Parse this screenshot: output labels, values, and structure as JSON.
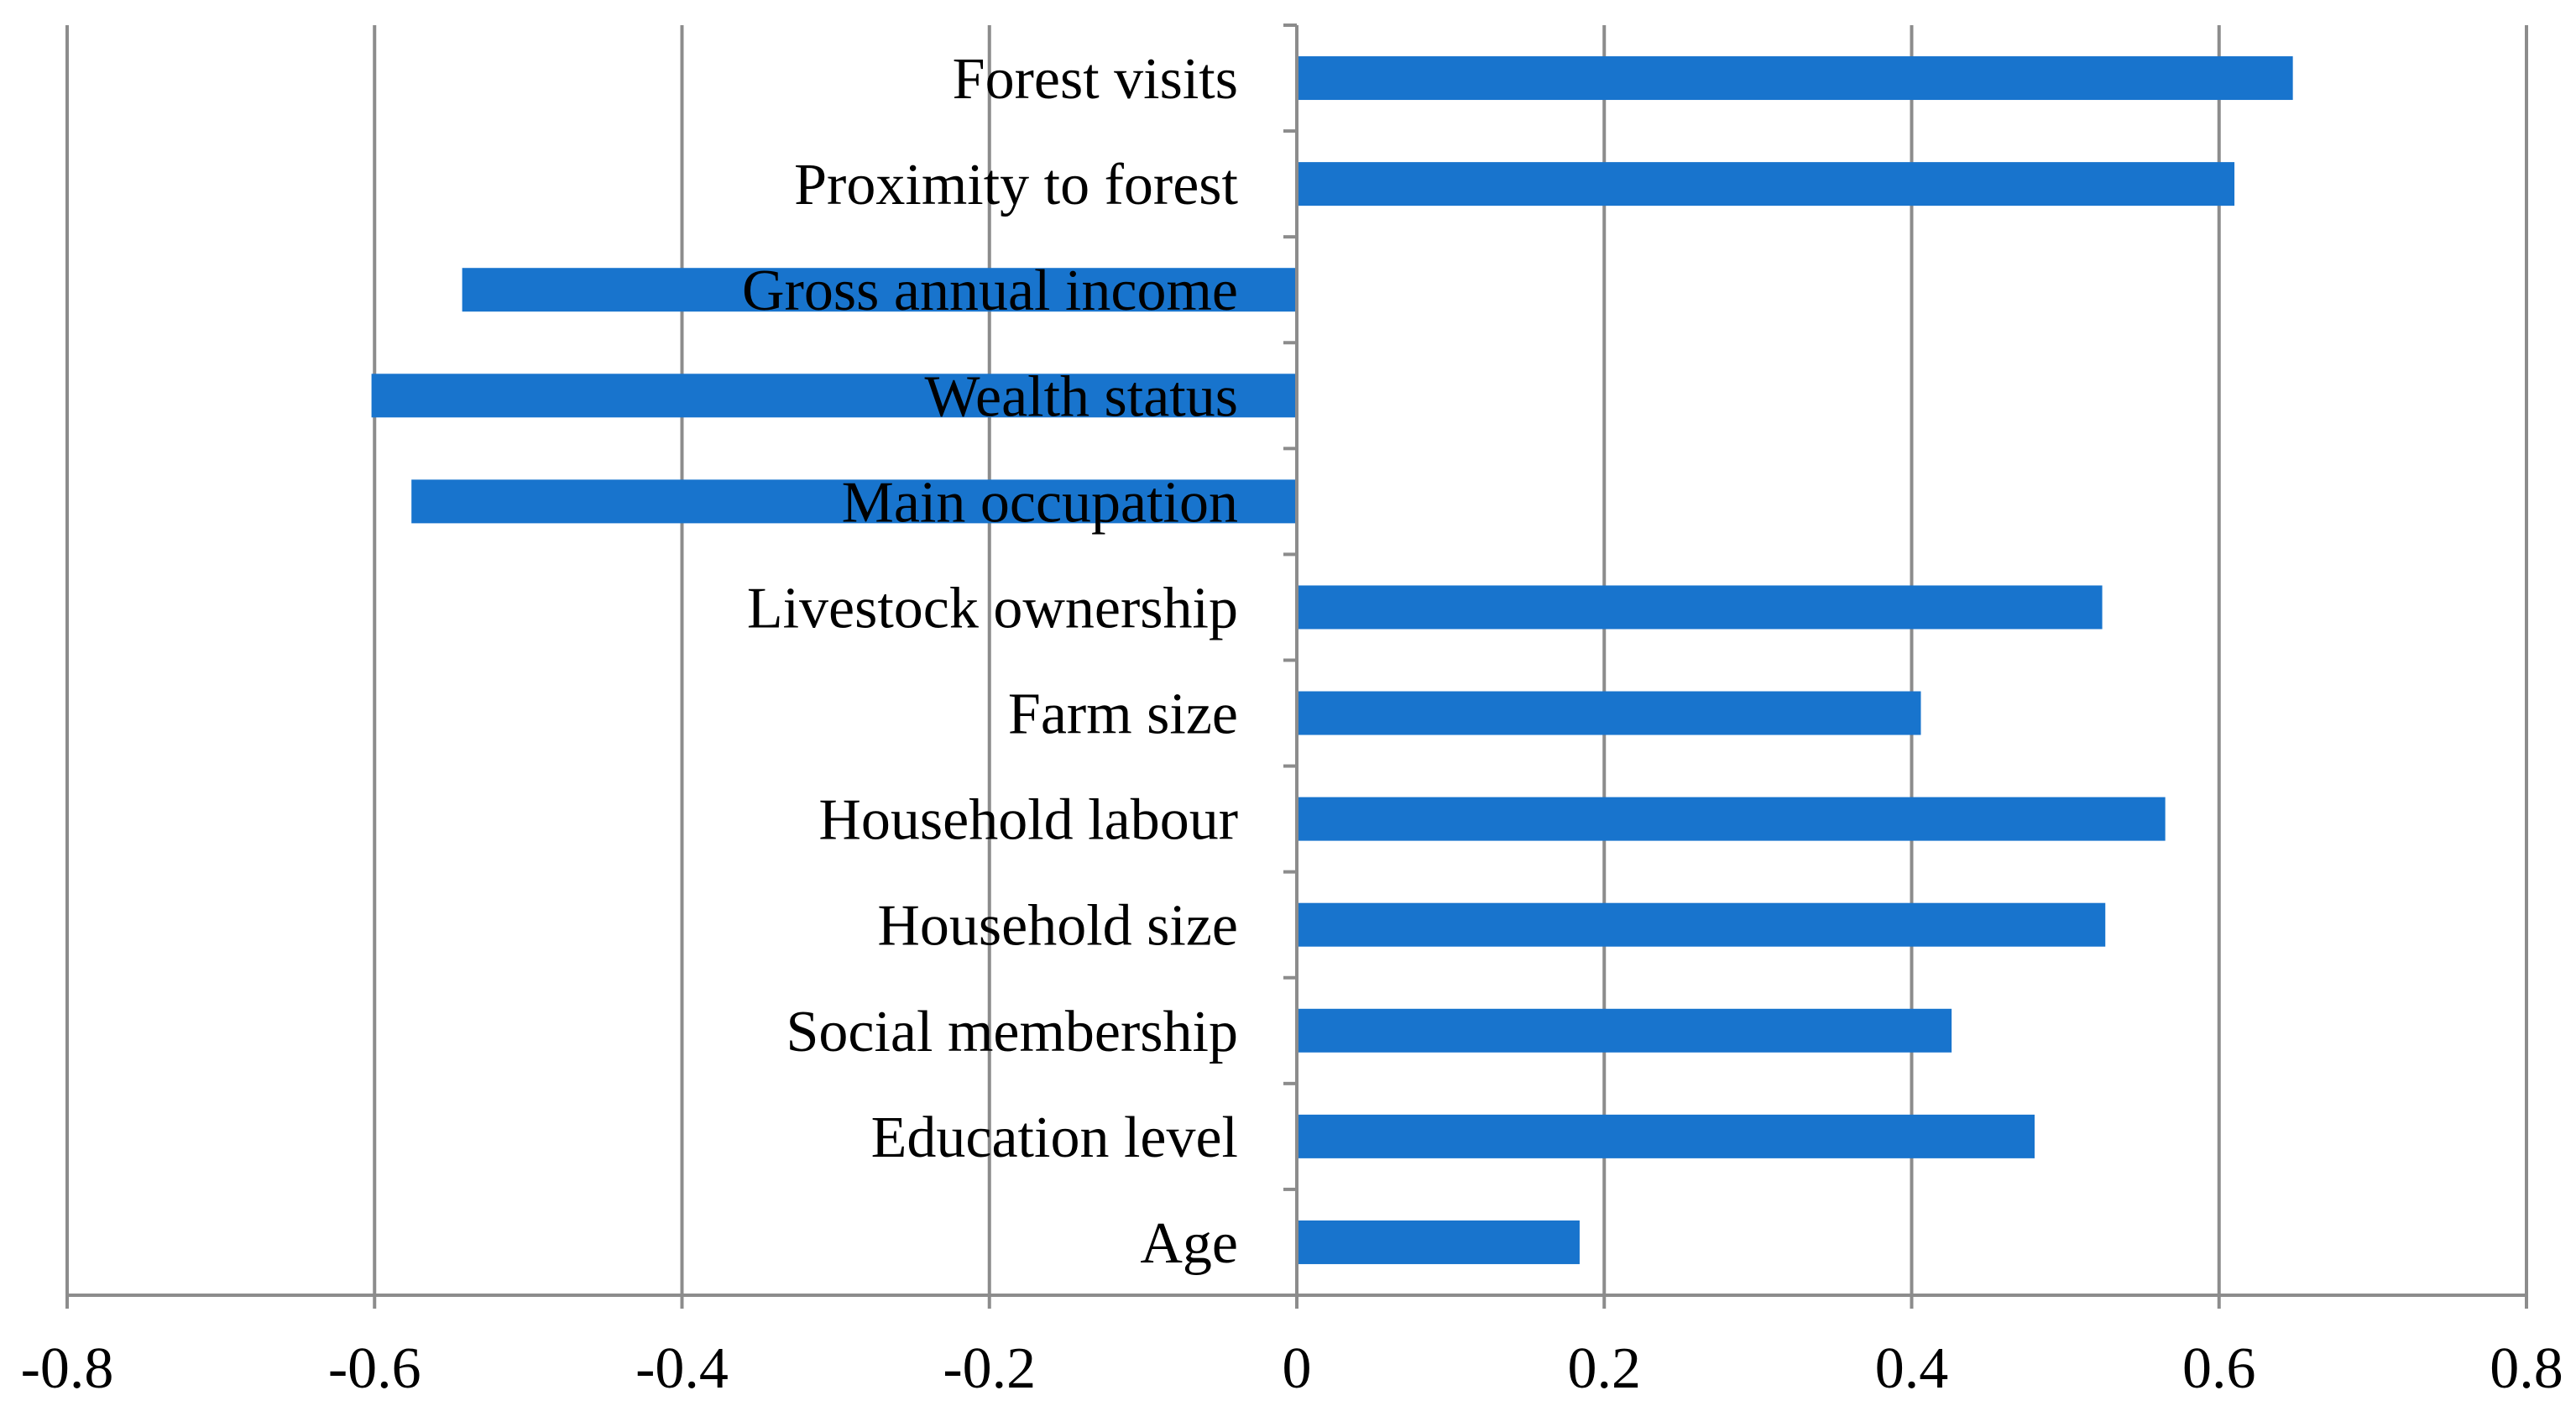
{
  "chart_data": {
    "type": "bar",
    "orientation": "horizontal",
    "title": "",
    "xlabel": "",
    "ylabel": "",
    "categories": [
      "Forest visits",
      "Proximity to forest",
      "Gross annual income",
      "Wealth status",
      "Main occupation",
      "Livestock ownership",
      "Farm size",
      "Household labour",
      "Household size",
      "Social membership",
      "Education level",
      "Age"
    ],
    "values": [
      0.648,
      0.61,
      -0.543,
      -0.602,
      -0.576,
      0.524,
      0.406,
      0.565,
      0.526,
      0.426,
      0.48,
      0.184
    ],
    "xlim": [
      -0.8,
      0.8
    ],
    "xticks": [
      -0.8,
      -0.6,
      -0.4,
      -0.2,
      0,
      0.2,
      0.4,
      0.6,
      0.8
    ],
    "xtick_labels": [
      "-0.8",
      "-0.6",
      "-0.4",
      "-0.2",
      "0",
      "0.2",
      "0.4",
      "0.6",
      "0.8"
    ],
    "grid": "vertical",
    "legend": "none",
    "colors": {
      "bar": "#1874CD",
      "grid": "#8C8C8C",
      "axis": "#8C8C8C",
      "text": "#000000"
    }
  }
}
